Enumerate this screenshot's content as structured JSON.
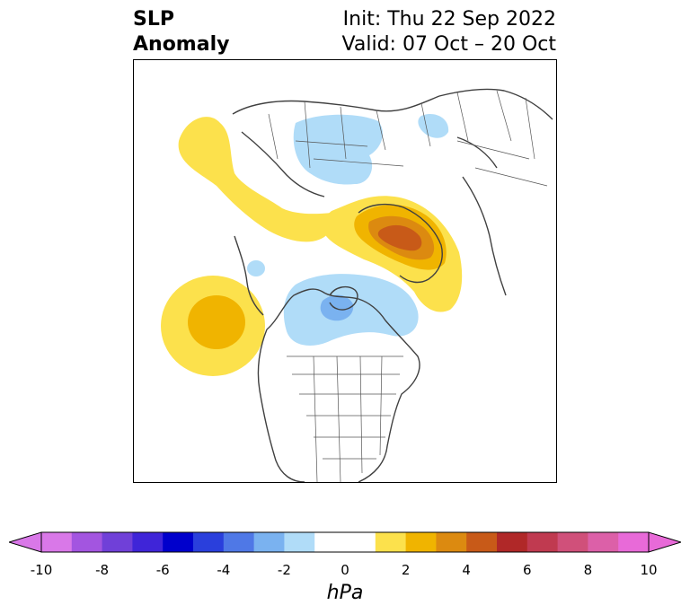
{
  "title": {
    "left_line1": "SLP",
    "left_line2": "Anomaly",
    "right_line1": "Init: Thu 22 Sep 2022",
    "right_line2": "Valid: 07 Oct – 20 Oct"
  },
  "map": {
    "projection": "polar-stereographic-north",
    "anomaly_areas": [
      {
        "name": "negative-anomaly-north-russia",
        "sign": "negative",
        "level": "-1 to -2"
      },
      {
        "name": "positive-anomaly-north-pacific-coast",
        "sign": "positive",
        "level": "1 to 2"
      },
      {
        "name": "positive-anomaly-arctic-band",
        "sign": "positive",
        "level": "1 to 2"
      },
      {
        "name": "positive-anomaly-greenland-core",
        "sign": "positive",
        "level": "4 to 6"
      },
      {
        "name": "positive-anomaly-north-pacific",
        "sign": "positive",
        "level": "2 to 3"
      },
      {
        "name": "negative-anomaly-hudson-bay",
        "sign": "negative",
        "level": "-2 to -3"
      }
    ]
  },
  "colorbar": {
    "units": "hPa",
    "ticks": [
      "-10",
      "-8",
      "-6",
      "-4",
      "-2",
      "0",
      "2",
      "4",
      "6",
      "8",
      "10"
    ],
    "min": -10,
    "max": 10,
    "colors": [
      "#d978e8",
      "#a355e0",
      "#7040d8",
      "#3f25d8",
      "#0000cc",
      "#2a3fdc",
      "#4f78e6",
      "#7ab2f0",
      "#b0dcf8",
      "#ffffff",
      "#ffffff",
      "#fce14c",
      "#f0b400",
      "#dc8a10",
      "#c85a18",
      "#b02828",
      "#c03a50",
      "#d0507a",
      "#dc60a8",
      "#e86ad8"
    ],
    "under_color": "#d978e8",
    "over_color": "#e86ad8"
  }
}
